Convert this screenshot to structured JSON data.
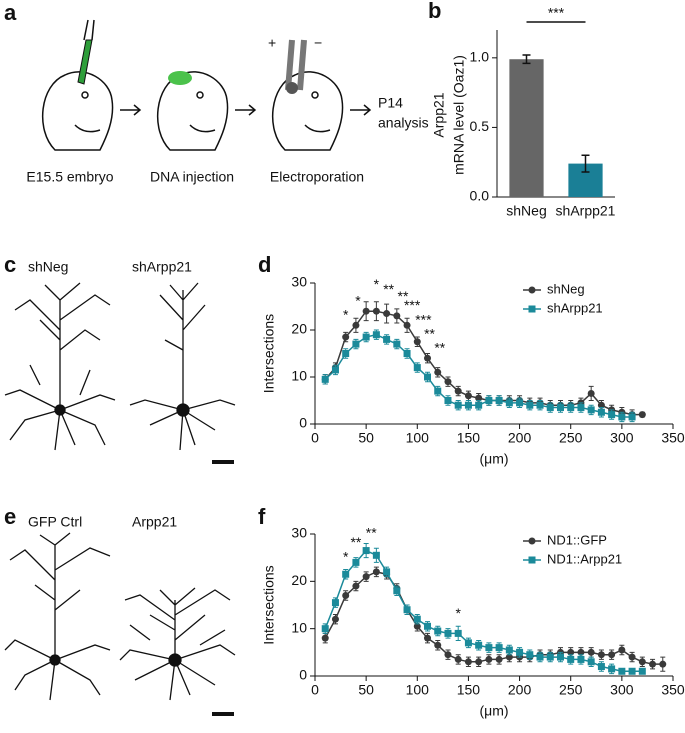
{
  "panel_letters": [
    "a",
    "b",
    "c",
    "d",
    "e",
    "f"
  ],
  "schematic_labels": [
    "E15.5 embryo",
    "DNA injection",
    "Electroporation",
    "P14",
    "analysis",
    "+",
    "−"
  ],
  "neuron_labels": [
    "shNeg",
    "shArpp21",
    "GFP Ctrl",
    "Arpp21"
  ],
  "chart_data": [
    {
      "type": "bar",
      "ylabel": [
        "Arpp21",
        "mRNA level (Oaz1)"
      ],
      "categories": [
        "shNeg",
        "shArpp21"
      ],
      "values": [
        0.99,
        0.24
      ],
      "errors": [
        0.03,
        0.06
      ],
      "colors": [
        "#666666",
        "#1a7f96"
      ],
      "ylim": [
        0,
        1.2
      ],
      "yticks": [
        {
          "value": 0,
          "label": "0.0"
        },
        {
          "value": 0.5,
          "label": "0.5"
        },
        {
          "value": 1,
          "label": "1.0"
        }
      ],
      "annotation": "***"
    },
    {
      "type": "line",
      "xlabel": "(μm)",
      "ylabel": "Intersections",
      "legend": "top-right",
      "x": [
        10,
        20,
        30,
        40,
        50,
        60,
        70,
        80,
        90,
        100,
        110,
        120,
        130,
        140,
        150,
        160,
        170,
        180,
        190,
        200,
        210,
        220,
        230,
        240,
        250,
        260,
        270,
        280,
        290,
        300,
        310,
        320
      ],
      "series": [
        {
          "name": "shNeg",
          "color": "#3a3a3a",
          "marker": "circle",
          "values": [
            9.5,
            12,
            18.5,
            21,
            24,
            24,
            23.5,
            23,
            21,
            17.5,
            14,
            11,
            9,
            7,
            6,
            5.5,
            5,
            5,
            5,
            5,
            4.5,
            4.5,
            4,
            4,
            4,
            4.5,
            6.5,
            4,
            3,
            2.5,
            2,
            2
          ],
          "errors": [
            1,
            1,
            1,
            1.5,
            2,
            2,
            2,
            1.5,
            1.5,
            1,
            1,
            1,
            1,
            1,
            1,
            1,
            1,
            1,
            1,
            1,
            1,
            1,
            1,
            1,
            1,
            1,
            1.5,
            1,
            1,
            1,
            1,
            0.5
          ]
        },
        {
          "name": "shArpp21",
          "color": "#1b8a9a",
          "marker": "square",
          "values": [
            9.5,
            11.5,
            15,
            17,
            18.5,
            19,
            18,
            17,
            15,
            12,
            10,
            7,
            5,
            4,
            4,
            4,
            5,
            5,
            4.5,
            4.5,
            4,
            4,
            3.5,
            3.5,
            3.5,
            3.5,
            3,
            2.5,
            2,
            1.5,
            1.5,
            null
          ],
          "errors": [
            1,
            1,
            1,
            1,
            1,
            1,
            1,
            1,
            1,
            1,
            1,
            1,
            1,
            1,
            1,
            1,
            1,
            1,
            1,
            1,
            1,
            1,
            1,
            1,
            1,
            1,
            1,
            1,
            1,
            1,
            1,
            null
          ]
        }
      ],
      "xlim": [
        0,
        350
      ],
      "xticks": [
        0,
        50,
        100,
        150,
        200,
        250,
        300,
        350
      ],
      "ylim": [
        0,
        30
      ],
      "yticks": [
        0,
        10,
        20,
        30
      ],
      "annotations": [
        {
          "text": "*",
          "x": 30,
          "y": 23
        },
        {
          "text": "*",
          "x": 42,
          "y": 26
        },
        {
          "text": "*",
          "x": 60,
          "y": 29.5
        },
        {
          "text": "**",
          "x": 72,
          "y": 28.5
        },
        {
          "text": "**",
          "x": 86,
          "y": 27
        },
        {
          "text": "***",
          "x": 95,
          "y": 25
        },
        {
          "text": "***",
          "x": 106,
          "y": 22
        },
        {
          "text": "**",
          "x": 112,
          "y": 19
        },
        {
          "text": "**",
          "x": 122,
          "y": 16
        }
      ]
    },
    {
      "type": "line",
      "xlabel": "(μm)",
      "ylabel": "Intersections",
      "legend": "top-right",
      "x": [
        10,
        20,
        30,
        40,
        50,
        60,
        70,
        80,
        90,
        100,
        110,
        120,
        130,
        140,
        150,
        160,
        170,
        180,
        190,
        200,
        210,
        220,
        230,
        240,
        250,
        260,
        270,
        280,
        290,
        300,
        310,
        320,
        330,
        340
      ],
      "series": [
        {
          "name": "ND1::GFP",
          "color": "#3a3a3a",
          "marker": "circle",
          "values": [
            8,
            12,
            17,
            19,
            21,
            22,
            21.5,
            18.5,
            14,
            10.5,
            8,
            6.5,
            4.5,
            3.5,
            3,
            3,
            3.5,
            3.5,
            4,
            4,
            4,
            4.5,
            4.5,
            5,
            5,
            5,
            5,
            4.5,
            4.5,
            5.5,
            4,
            3,
            2.5,
            2.5
          ],
          "errors": [
            1,
            1,
            1,
            1,
            1,
            1,
            1,
            1,
            1,
            1,
            1,
            1,
            1,
            1,
            1,
            1,
            1,
            1,
            1,
            1,
            1,
            1,
            1,
            1,
            1,
            1,
            1,
            1,
            1,
            1,
            1,
            1,
            1,
            1.5
          ]
        },
        {
          "name": "ND1::Arpp21",
          "color": "#1b8a9a",
          "marker": "square",
          "values": [
            10,
            15.5,
            21.5,
            24,
            26.5,
            25.5,
            22,
            18,
            14,
            12,
            10.5,
            9.5,
            9,
            9,
            7,
            6.5,
            6,
            6,
            5.5,
            5,
            4.5,
            4,
            4,
            4,
            3.5,
            3.5,
            3,
            2,
            1.5,
            1,
            1,
            1,
            null,
            null
          ],
          "errors": [
            1,
            1,
            1,
            1,
            1.5,
            1.5,
            1,
            1,
            1,
            1,
            1,
            1,
            1,
            1.5,
            1,
            1,
            1,
            1,
            1,
            1,
            1,
            1,
            1,
            1,
            1,
            1,
            1,
            1,
            1,
            0.5,
            0.5,
            0.5,
            null,
            null
          ]
        }
      ],
      "xlim": [
        0,
        350
      ],
      "xticks": [
        0,
        50,
        100,
        150,
        200,
        250,
        300,
        350
      ],
      "ylim": [
        0,
        30
      ],
      "yticks": [
        0,
        10,
        20,
        30
      ],
      "annotations": [
        {
          "text": "*",
          "x": 30,
          "y": 25
        },
        {
          "text": "**",
          "x": 40,
          "y": 28
        },
        {
          "text": "**",
          "x": 55,
          "y": 30
        },
        {
          "text": "*",
          "x": 140,
          "y": 13
        }
      ]
    }
  ]
}
